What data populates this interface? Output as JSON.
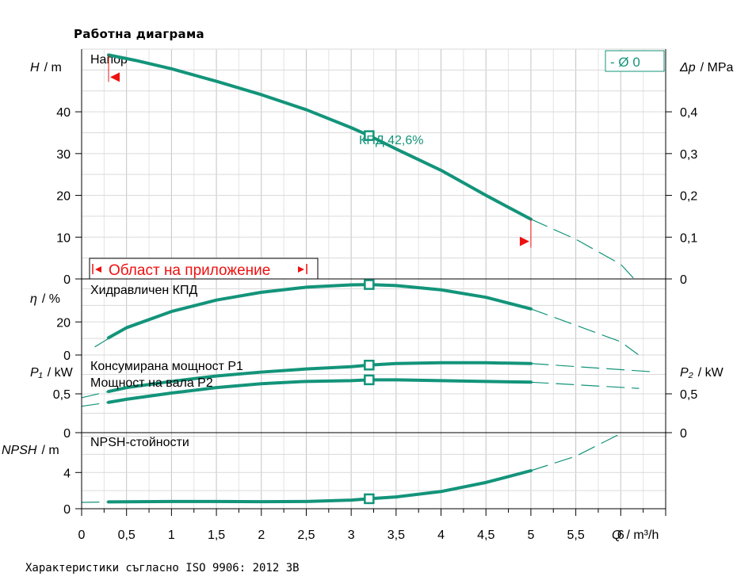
{
  "title": "Работна диаграма",
  "footer": "Характеристики съгласно ISO 9906: 2012 3B",
  "colors": {
    "curve": "#13947a",
    "grid": "#cfcfcf",
    "marker": "#ee1111"
  },
  "chart_data": {
    "type": "line",
    "x_axis": {
      "label": "Q / m³/h",
      "range": [
        0,
        6.5
      ],
      "ticks": [
        0,
        0.5,
        1,
        1.5,
        2,
        2.5,
        3,
        3.5,
        4,
        4.5,
        5,
        5.5,
        6
      ],
      "tick_labels": [
        "0",
        "0,5",
        "1",
        "1,5",
        "2",
        "2,5",
        "3",
        "3,5",
        "4",
        "4,5",
        "5",
        "5,5",
        "6"
      ]
    },
    "panels": [
      {
        "id": "head",
        "name": "Напор",
        "ylabel": "H / m",
        "ylim": [
          0,
          55
        ],
        "yticks": [
          0,
          10,
          20,
          30,
          40
        ],
        "ytick_labels": [
          "0",
          "10",
          "20",
          "30",
          "40"
        ],
        "y2label": "Δp / MPa",
        "y2ticks": [
          0,
          0.1,
          0.2,
          0.3,
          0.4
        ],
        "y2tick_labels": [
          "0",
          "0,1",
          "0,2",
          "0,3",
          "0,4"
        ],
        "legend": "- Ø 0",
        "series": [
          {
            "x": [
              0.3,
              0.6,
              1.0,
              1.5,
              2.0,
              2.5,
              3.0,
              3.2,
              3.5,
              4.0,
              4.5,
              5.0
            ],
            "y": [
              53.6,
              52.3,
              50.3,
              47.3,
              44.1,
              40.5,
              36.2,
              34.3,
              31.1,
              26.0,
              20.0,
              14.3
            ]
          },
          {
            "dashed": true,
            "x": [
              5.0,
              5.5,
              6.0,
              6.15
            ],
            "y": [
              14.3,
              9.5,
              3.5,
              0
            ]
          }
        ],
        "bep_marker": {
          "x": 3.2,
          "y": 34.3
        },
        "annotation": "КПД  42,6%",
        "operating_range": {
          "label": "Област на приложение",
          "from": 0.3,
          "to": 5.0
        }
      },
      {
        "id": "efficiency",
        "name": "Хидравличен КПД",
        "ylabel": "η / %",
        "ylim": [
          0,
          46
        ],
        "yticks": [
          0,
          20
        ],
        "ytick_labels": [
          "0",
          "20"
        ],
        "series": [
          {
            "dashed": true,
            "x": [
              0.15,
              0.3
            ],
            "y": [
              5,
              10
            ]
          },
          {
            "x": [
              0.3,
              0.5,
              1.0,
              1.5,
              2.0,
              2.5,
              3.0,
              3.2,
              3.5,
              4.0,
              4.5,
              5.0
            ],
            "y": [
              10.4,
              16.5,
              26.3,
              33.2,
              37.9,
              41.0,
              42.4,
              42.6,
              42.0,
              39.4,
              34.9,
              27.9
            ]
          },
          {
            "dashed": true,
            "x": [
              5.0,
              5.5,
              6.0,
              6.2
            ],
            "y": [
              27.9,
              18,
              8,
              0
            ]
          }
        ],
        "bep_marker": {
          "x": 3.2,
          "y": 42.6
        }
      },
      {
        "id": "power",
        "ylabel": "P₁ / kW",
        "ylim": [
          0,
          1.0
        ],
        "yticks": [
          0,
          0.5
        ],
        "ytick_labels": [
          "0",
          "0,5"
        ],
        "y2label": "P₂ / kW",
        "y2ticks": [
          0,
          0.5
        ],
        "y2tick_labels": [
          "0",
          "0,5"
        ],
        "series": [
          {
            "name": "Консумирана мощност P1",
            "x": [
              0.3,
              0.5,
              1.0,
              1.5,
              2.0,
              2.5,
              3.0,
              3.2,
              3.5,
              4.0,
              4.5,
              5.0
            ],
            "y": [
              0.53,
              0.58,
              0.66,
              0.73,
              0.78,
              0.82,
              0.85,
              0.87,
              0.89,
              0.9,
              0.9,
              0.89
            ]
          },
          {
            "dashed": true,
            "x": [
              0.0,
              0.3
            ],
            "y": [
              0.45,
              0.53
            ]
          },
          {
            "dashed": true,
            "x": [
              5.0,
              6.4
            ],
            "y": [
              0.89,
              0.78
            ]
          },
          {
            "name": "Мощност на вала P2",
            "x": [
              0.3,
              0.5,
              1.0,
              1.5,
              2.0,
              2.5,
              3.0,
              3.2,
              3.5,
              4.0,
              4.5,
              5.0
            ],
            "y": [
              0.39,
              0.43,
              0.51,
              0.58,
              0.63,
              0.66,
              0.67,
              0.68,
              0.68,
              0.67,
              0.66,
              0.65
            ]
          },
          {
            "dashed": true,
            "x": [
              0.0,
              0.3
            ],
            "y": [
              0.34,
              0.39
            ]
          },
          {
            "dashed": true,
            "x": [
              5.0,
              6.2
            ],
            "y": [
              0.65,
              0.57
            ]
          }
        ],
        "bep_markers": [
          {
            "x": 3.2,
            "y": 0.87
          },
          {
            "x": 3.2,
            "y": 0.68
          }
        ]
      },
      {
        "id": "npsh",
        "name": "NPSH-стойности",
        "ylabel": "NPSH / m",
        "ylim": [
          0,
          8.4
        ],
        "yticks": [
          0,
          4
        ],
        "ytick_labels": [
          "0",
          "4"
        ],
        "series": [
          {
            "dashed": true,
            "x": [
              0.0,
              0.3
            ],
            "y": [
              0.7,
              0.75
            ]
          },
          {
            "x": [
              0.3,
              1.0,
              1.5,
              2.0,
              2.5,
              3.0,
              3.2,
              3.5,
              4.0,
              4.5,
              5.0
            ],
            "y": [
              0.75,
              0.8,
              0.8,
              0.78,
              0.8,
              0.95,
              1.1,
              1.3,
              1.9,
              2.9,
              4.2
            ]
          },
          {
            "dashed": true,
            "x": [
              5.0,
              5.5,
              6.0
            ],
            "y": [
              4.2,
              5.8,
              8.3
            ]
          }
        ],
        "bep_marker": {
          "x": 3.2,
          "y": 1.1
        }
      }
    ]
  }
}
